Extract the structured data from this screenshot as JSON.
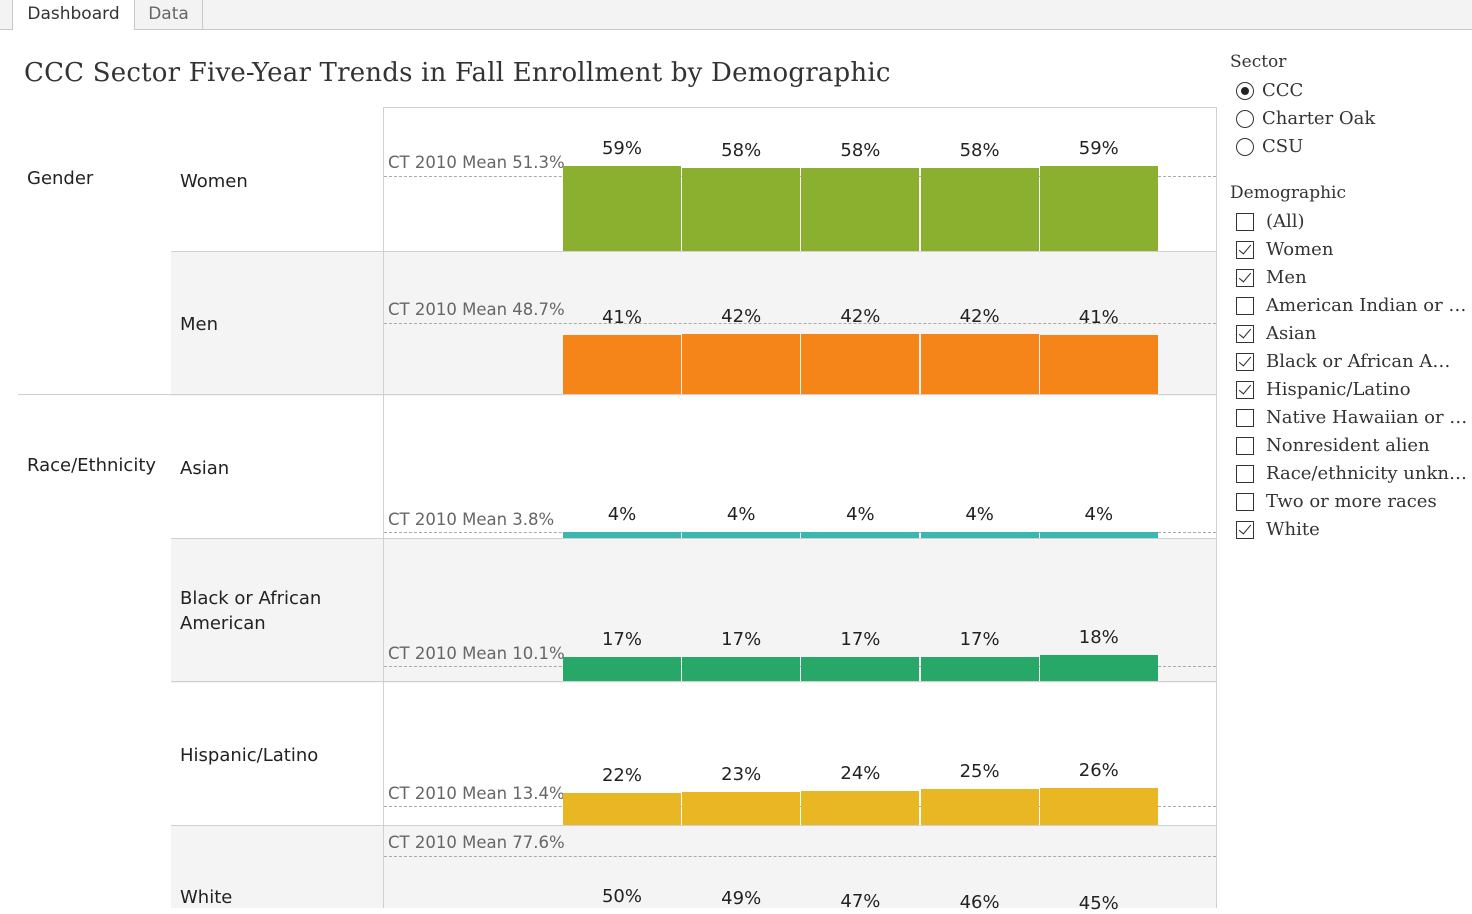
{
  "tabs": [
    {
      "label": "Dashboard",
      "active": true
    },
    {
      "label": "Data",
      "active": false
    }
  ],
  "page_title": "CCC Sector Five-Year Trends in Fall Enrollment by Demographic",
  "groups": [
    {
      "label": "Gender"
    },
    {
      "label": "Race/Ethnicity"
    }
  ],
  "rows": [
    {
      "demographic": "Women",
      "group": "Gender",
      "color": "#8bb030",
      "ref_label": "CT 2010 Mean 51.3%",
      "ref_value": 51.3,
      "values": [
        59,
        58,
        58,
        58,
        59
      ],
      "labels": [
        "59%",
        "58%",
        "58%",
        "58%",
        "59%"
      ]
    },
    {
      "demographic": "Men",
      "group": "Gender",
      "color": "#f58518",
      "ref_label": "CT 2010 Mean 48.7%",
      "ref_value": 48.7,
      "values": [
        41,
        42,
        42,
        42,
        41
      ],
      "labels": [
        "41%",
        "42%",
        "42%",
        "42%",
        "41%"
      ]
    },
    {
      "demographic": "Asian",
      "group": "Race/Ethnicity",
      "color": "#3ab7b0",
      "ref_label": "CT 2010 Mean 3.8%",
      "ref_value": 3.8,
      "values": [
        4,
        4,
        4,
        4,
        4
      ],
      "labels": [
        "4%",
        "4%",
        "4%",
        "4%",
        "4%"
      ]
    },
    {
      "demographic": "Black or African American",
      "group": "Race/Ethnicity",
      "color": "#27a768",
      "ref_label": "CT 2010 Mean 10.1%",
      "ref_value": 10.1,
      "values": [
        17,
        17,
        17,
        17,
        18
      ],
      "labels": [
        "17%",
        "17%",
        "17%",
        "17%",
        "18%"
      ]
    },
    {
      "demographic": "Hispanic/Latino",
      "group": "Race/Ethnicity",
      "color": "#e8b723",
      "ref_label": "CT 2010 Mean 13.4%",
      "ref_value": 13.4,
      "values": [
        22,
        23,
        24,
        25,
        26
      ],
      "labels": [
        "22%",
        "23%",
        "24%",
        "25%",
        "26%"
      ]
    },
    {
      "demographic": "White",
      "group": "Race/Ethnicity",
      "color": "#4c78b8",
      "ref_label": "CT 2010 Mean 77.6%",
      "ref_value": 77.6,
      "values": [
        50,
        49,
        47,
        46,
        45
      ],
      "labels": [
        "50%",
        "49%",
        "47%",
        "46%",
        "45%"
      ]
    }
  ],
  "chart_data": {
    "type": "bar",
    "title": "CCC Sector Five-Year Trends in Fall Enrollment by Demographic",
    "row_labels": [
      "Women",
      "Men",
      "Asian",
      "Black or African American",
      "Hispanic/Latino",
      "White"
    ],
    "series": [
      {
        "name": "Women",
        "values": [
          59,
          58,
          58,
          58,
          59
        ]
      },
      {
        "name": "Men",
        "values": [
          41,
          42,
          42,
          42,
          41
        ]
      },
      {
        "name": "Asian",
        "values": [
          4,
          4,
          4,
          4,
          4
        ]
      },
      {
        "name": "Black or African American",
        "values": [
          17,
          17,
          17,
          17,
          18
        ]
      },
      {
        "name": "Hispanic/Latino",
        "values": [
          22,
          23,
          24,
          25,
          26
        ]
      },
      {
        "name": "White",
        "values": [
          50,
          49,
          47,
          46,
          45
        ]
      }
    ],
    "reference_lines": [
      51.3,
      48.7,
      3.8,
      10.1,
      13.4,
      77.6
    ],
    "grid": false
  },
  "filters": {
    "sector": {
      "title": "Sector",
      "options": [
        {
          "label": "CCC",
          "selected": true
        },
        {
          "label": "Charter Oak",
          "selected": false
        },
        {
          "label": "CSU",
          "selected": false
        }
      ]
    },
    "demographic": {
      "title": "Demographic",
      "options": [
        {
          "label": "(All)",
          "checked": false
        },
        {
          "label": "Women",
          "checked": true
        },
        {
          "label": "Men",
          "checked": true
        },
        {
          "label": "American Indian or …",
          "checked": false
        },
        {
          "label": "Asian",
          "checked": true
        },
        {
          "label": "Black or African A…",
          "checked": true
        },
        {
          "label": "Hispanic/Latino",
          "checked": true
        },
        {
          "label": "Native Hawaiian or …",
          "checked": false
        },
        {
          "label": "Nonresident alien",
          "checked": false
        },
        {
          "label": "Race/ethnicity unkn…",
          "checked": false
        },
        {
          "label": "Two or more races",
          "checked": false
        },
        {
          "label": "White",
          "checked": true
        }
      ]
    }
  }
}
